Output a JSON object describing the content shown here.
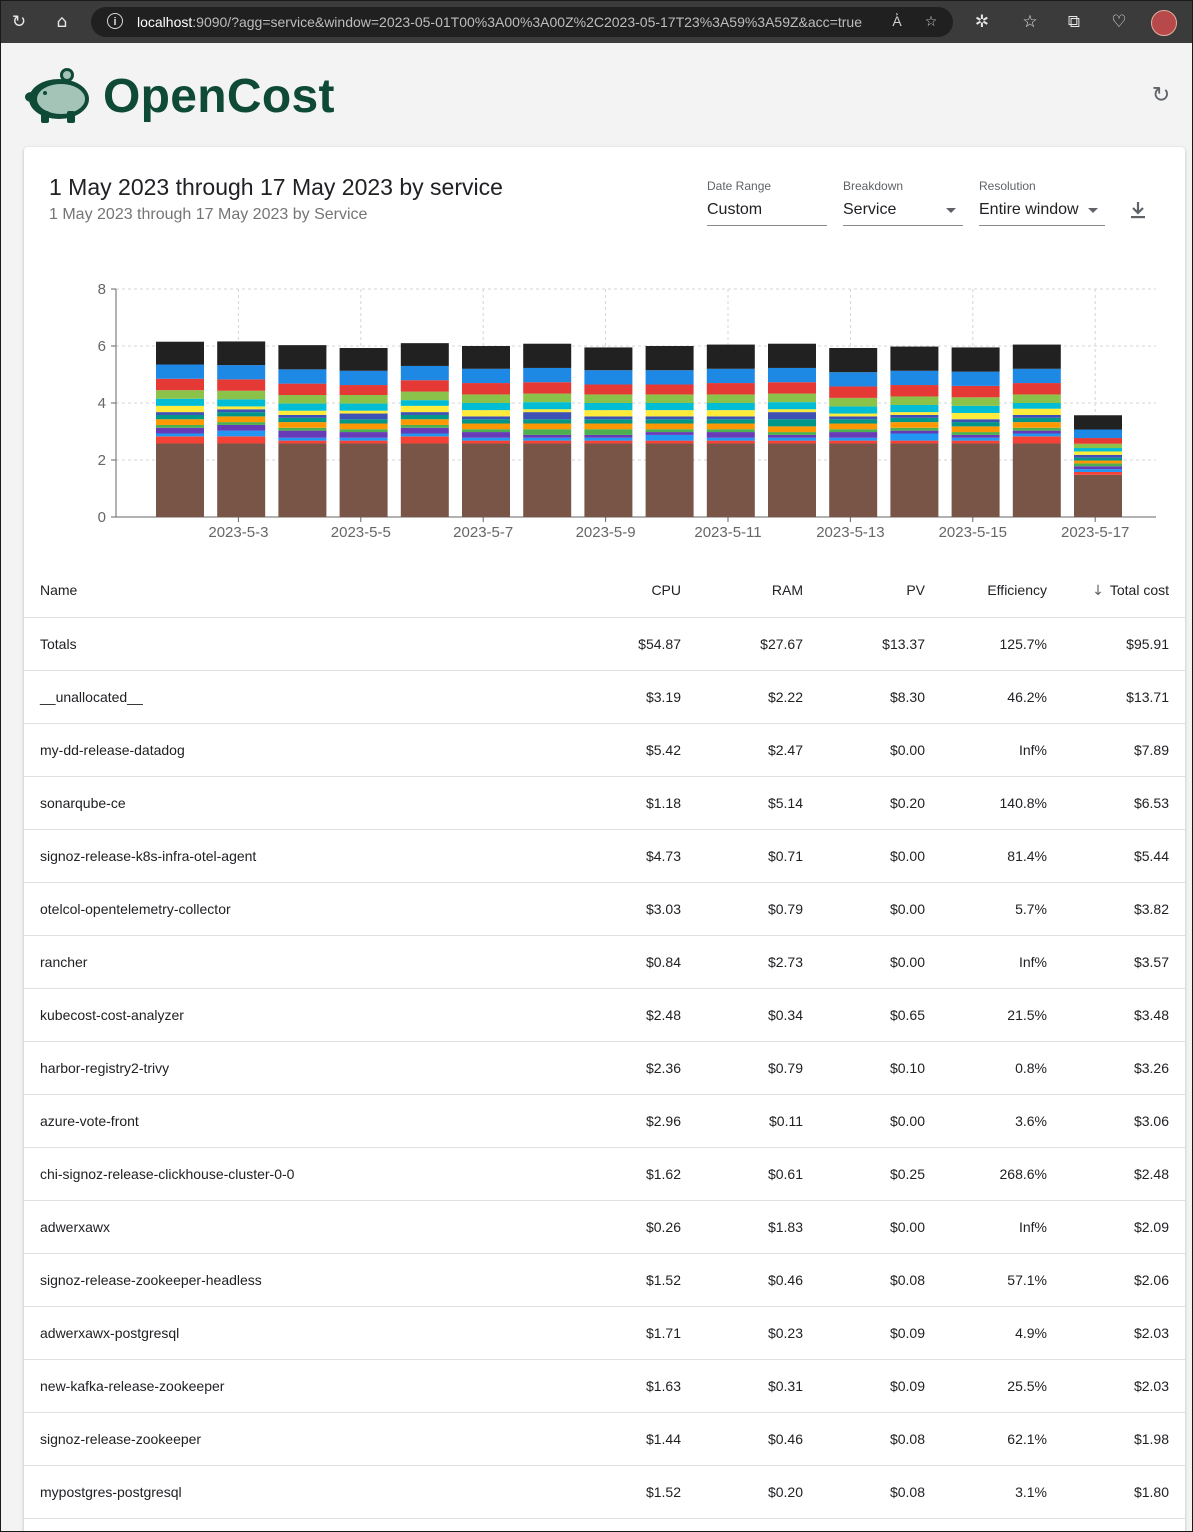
{
  "browser": {
    "url_host": "localhost",
    "url_rest": ":9090/?agg=service&window=2023-05-01T00%3A00%3A00Z%2C2023-05-17T23%3A59%3A59Z&acc=true"
  },
  "header": {
    "logo_text": "OpenCost"
  },
  "report": {
    "title": "1 May 2023 through 17 May 2023 by service",
    "subtitle": "1 May 2023 through 17 May 2023 by Service"
  },
  "controls": {
    "date_range": {
      "label": "Date Range",
      "value": "Custom"
    },
    "breakdown": {
      "label": "Breakdown",
      "value": "Service"
    },
    "resolution": {
      "label": "Resolution",
      "value": "Entire window"
    }
  },
  "chart_data": {
    "type": "bar",
    "stacked": true,
    "categories": [
      "2023-5-2",
      "2023-5-3",
      "2023-5-4",
      "2023-5-5",
      "2023-5-6",
      "2023-5-7",
      "2023-5-8",
      "2023-5-9",
      "2023-5-10",
      "2023-5-11",
      "2023-5-12",
      "2023-5-13",
      "2023-5-14",
      "2023-5-15",
      "2023-5-16",
      "2023-5-17"
    ],
    "x_tick_labels": [
      "2023-5-3",
      "2023-5-5",
      "2023-5-7",
      "2023-5-9",
      "2023-5-11",
      "2023-5-13",
      "2023-5-15",
      "2023-5-17"
    ],
    "ylim": [
      0,
      8
    ],
    "y_ticks": [
      0,
      2,
      4,
      6,
      8
    ],
    "grid": true,
    "colors": [
      "#795548",
      "#f44336",
      "#2196f3",
      "#673ab7",
      "#4caf50",
      "#ff9800",
      "#009688",
      "#3f51b5",
      "#ffeb3b",
      "#00bcd4",
      "#8bc34a",
      "#e53935",
      "#1e88e5",
      "#212121"
    ],
    "series": [
      {
        "values": [
          2.58,
          2.58,
          2.58,
          2.58,
          2.58,
          2.58,
          2.58,
          2.58,
          2.58,
          2.58,
          2.58,
          2.58,
          2.58,
          2.58,
          2.58,
          1.48
        ]
      },
      {
        "values": [
          0.25,
          0.25,
          0.1,
          0.1,
          0.25,
          0.1,
          0.1,
          0.1,
          0.1,
          0.1,
          0.1,
          0.1,
          0.1,
          0.1,
          0.25,
          0.1
        ]
      },
      {
        "values": [
          0.1,
          0.2,
          0.1,
          0.1,
          0.1,
          0.1,
          0.1,
          0.1,
          0.2,
          0.1,
          0.1,
          0.1,
          0.25,
          0.1,
          0.1,
          0.1
        ]
      },
      {
        "values": [
          0.2,
          0.2,
          0.25,
          0.2,
          0.2,
          0.2,
          0.1,
          0.1,
          0.1,
          0.2,
          0.1,
          0.2,
          0.1,
          0.1,
          0.1,
          0.1
        ]
      },
      {
        "values": [
          0.1,
          0.1,
          0.1,
          0.1,
          0.1,
          0.1,
          0.2,
          0.2,
          0.1,
          0.1,
          0.1,
          0.1,
          0.1,
          0.1,
          0.1,
          0.1
        ]
      },
      {
        "values": [
          0.2,
          0.2,
          0.2,
          0.2,
          0.2,
          0.2,
          0.2,
          0.2,
          0.2,
          0.2,
          0.2,
          0.2,
          0.2,
          0.2,
          0.2,
          0.1
        ]
      },
      {
        "values": [
          0.15,
          0.15,
          0.15,
          0.15,
          0.15,
          0.15,
          0.15,
          0.15,
          0.15,
          0.15,
          0.25,
          0.15,
          0.15,
          0.15,
          0.15,
          0.1
        ]
      },
      {
        "values": [
          0.1,
          0.1,
          0.1,
          0.2,
          0.1,
          0.1,
          0.25,
          0.1,
          0.1,
          0.1,
          0.25,
          0.1,
          0.1,
          0.1,
          0.1,
          0.1
        ]
      },
      {
        "values": [
          0.22,
          0.1,
          0.15,
          0.1,
          0.22,
          0.22,
          0.1,
          0.22,
          0.22,
          0.22,
          0.1,
          0.1,
          0.1,
          0.22,
          0.22,
          0.12
        ]
      },
      {
        "values": [
          0.25,
          0.25,
          0.25,
          0.25,
          0.2,
          0.25,
          0.25,
          0.25,
          0.25,
          0.25,
          0.25,
          0.25,
          0.25,
          0.25,
          0.2,
          0.12
        ]
      },
      {
        "values": [
          0.3,
          0.3,
          0.3,
          0.3,
          0.3,
          0.3,
          0.3,
          0.3,
          0.3,
          0.3,
          0.3,
          0.3,
          0.3,
          0.3,
          0.3,
          0.15
        ]
      },
      {
        "values": [
          0.4,
          0.4,
          0.4,
          0.35,
          0.4,
          0.4,
          0.4,
          0.35,
          0.35,
          0.4,
          0.4,
          0.4,
          0.4,
          0.4,
          0.4,
          0.2
        ]
      },
      {
        "values": [
          0.5,
          0.5,
          0.5,
          0.5,
          0.5,
          0.5,
          0.5,
          0.5,
          0.5,
          0.5,
          0.5,
          0.5,
          0.5,
          0.5,
          0.5,
          0.3
        ]
      },
      {
        "values": [
          0.8,
          0.83,
          0.85,
          0.8,
          0.8,
          0.8,
          0.85,
          0.8,
          0.85,
          0.85,
          0.85,
          0.85,
          0.85,
          0.85,
          0.85,
          0.5
        ]
      }
    ]
  },
  "table": {
    "headers": {
      "name": "Name",
      "cpu": "CPU",
      "ram": "RAM",
      "pv": "PV",
      "efficiency": "Efficiency",
      "total": "Total cost"
    },
    "rows": [
      {
        "name": "Totals",
        "cpu": "$54.87",
        "ram": "$27.67",
        "pv": "$13.37",
        "efficiency": "125.7%",
        "total": "$95.91"
      },
      {
        "name": "__unallocated__",
        "cpu": "$3.19",
        "ram": "$2.22",
        "pv": "$8.30",
        "efficiency": "46.2%",
        "total": "$13.71"
      },
      {
        "name": "my-dd-release-datadog",
        "cpu": "$5.42",
        "ram": "$2.47",
        "pv": "$0.00",
        "efficiency": "Inf%",
        "total": "$7.89"
      },
      {
        "name": "sonarqube-ce",
        "cpu": "$1.18",
        "ram": "$5.14",
        "pv": "$0.20",
        "efficiency": "140.8%",
        "total": "$6.53"
      },
      {
        "name": "signoz-release-k8s-infra-otel-agent",
        "cpu": "$4.73",
        "ram": "$0.71",
        "pv": "$0.00",
        "efficiency": "81.4%",
        "total": "$5.44"
      },
      {
        "name": "otelcol-opentelemetry-collector",
        "cpu": "$3.03",
        "ram": "$0.79",
        "pv": "$0.00",
        "efficiency": "5.7%",
        "total": "$3.82"
      },
      {
        "name": "rancher",
        "cpu": "$0.84",
        "ram": "$2.73",
        "pv": "$0.00",
        "efficiency": "Inf%",
        "total": "$3.57"
      },
      {
        "name": "kubecost-cost-analyzer",
        "cpu": "$2.48",
        "ram": "$0.34",
        "pv": "$0.65",
        "efficiency": "21.5%",
        "total": "$3.48"
      },
      {
        "name": "harbor-registry2-trivy",
        "cpu": "$2.36",
        "ram": "$0.79",
        "pv": "$0.10",
        "efficiency": "0.8%",
        "total": "$3.26"
      },
      {
        "name": "azure-vote-front",
        "cpu": "$2.96",
        "ram": "$0.11",
        "pv": "$0.00",
        "efficiency": "3.6%",
        "total": "$3.06"
      },
      {
        "name": "chi-signoz-release-clickhouse-cluster-0-0",
        "cpu": "$1.62",
        "ram": "$0.61",
        "pv": "$0.25",
        "efficiency": "268.6%",
        "total": "$2.48"
      },
      {
        "name": "adwerxawx",
        "cpu": "$0.26",
        "ram": "$1.83",
        "pv": "$0.00",
        "efficiency": "Inf%",
        "total": "$2.09"
      },
      {
        "name": "signoz-release-zookeeper-headless",
        "cpu": "$1.52",
        "ram": "$0.46",
        "pv": "$0.08",
        "efficiency": "57.1%",
        "total": "$2.06"
      },
      {
        "name": "adwerxawx-postgresql",
        "cpu": "$1.71",
        "ram": "$0.23",
        "pv": "$0.09",
        "efficiency": "4.9%",
        "total": "$2.03"
      },
      {
        "name": "new-kafka-release-zookeeper",
        "cpu": "$1.63",
        "ram": "$0.31",
        "pv": "$0.09",
        "efficiency": "25.5%",
        "total": "$2.03"
      },
      {
        "name": "signoz-release-zookeeper",
        "cpu": "$1.44",
        "ram": "$0.46",
        "pv": "$0.08",
        "efficiency": "62.1%",
        "total": "$1.98"
      },
      {
        "name": "mypostgres-postgresql",
        "cpu": "$1.52",
        "ram": "$0.20",
        "pv": "$0.08",
        "efficiency": "3.1%",
        "total": "$1.80"
      }
    ]
  }
}
